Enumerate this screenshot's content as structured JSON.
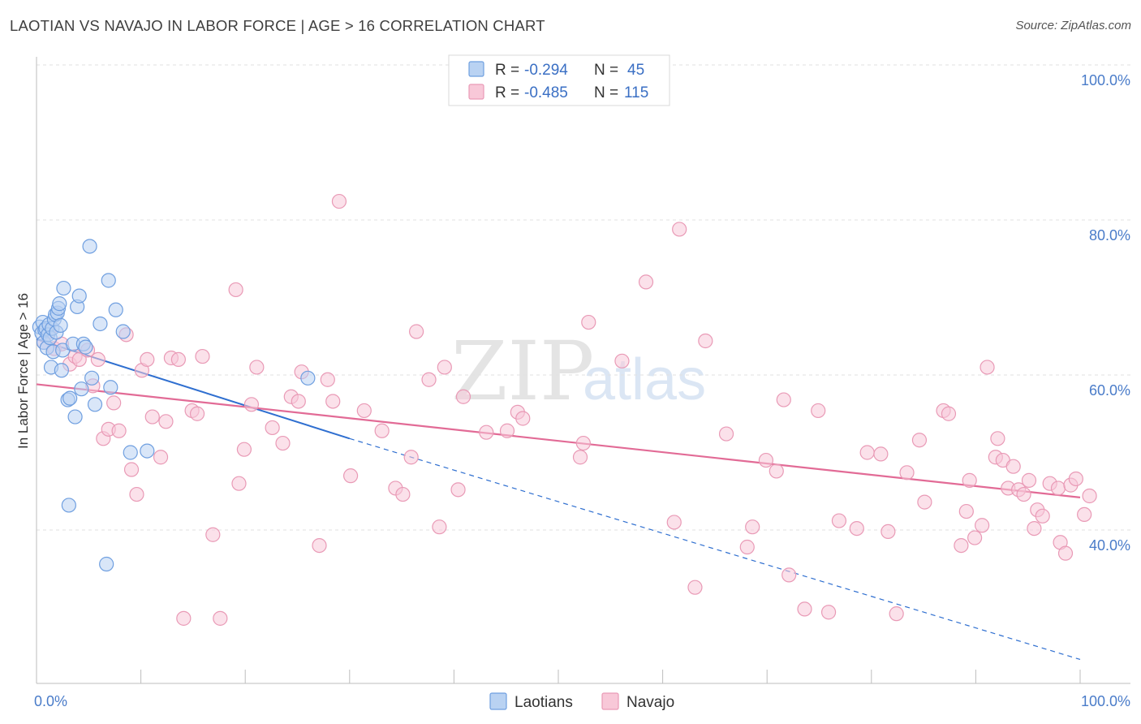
{
  "header": {
    "title": "LAOTIAN VS NAVAJO IN LABOR FORCE | AGE > 16 CORRELATION CHART",
    "source": "Source: ZipAtlas.com"
  },
  "watermark": {
    "zip": "ZIP",
    "atlas": "atlas"
  },
  "colors": {
    "laotian_fill": "#b9d2f2",
    "laotian_stroke": "#6f9fe0",
    "laotian_line": "#2f6fd0",
    "navajo_fill": "#f8c8d8",
    "navajo_stroke": "#e99ab6",
    "navajo_line": "#e26b96",
    "tick_label": "#4a7cc9",
    "grid": "#e2e2e2"
  },
  "legend": {
    "rows": [
      {
        "r_label": "R = ",
        "r_value": "-0.294",
        "n_label": "N = ",
        "n_value": "45"
      },
      {
        "r_label": "R = ",
        "r_value": "-0.485",
        "n_label": "N = ",
        "n_value": "115"
      }
    ]
  },
  "chart_data": {
    "type": "scatter",
    "title": "LAOTIAN VS NAVAJO IN LABOR FORCE | AGE > 16 CORRELATION CHART",
    "xlabel": "",
    "ylabel": "In Labor Force | Age > 16",
    "xlim": [
      0,
      100
    ],
    "ylim": [
      20,
      103
    ],
    "x_tick_labels": [
      "0.0%",
      "100.0%"
    ],
    "y_ticks": [
      40,
      60,
      80,
      100
    ],
    "y_tick_labels": [
      "40.0%",
      "60.0%",
      "80.0%",
      "100.0%"
    ],
    "grid": true,
    "legend_position": "top-center",
    "series": [
      {
        "name": "Laotians",
        "r": -0.294,
        "n": 45,
        "trend": {
          "x0": 0,
          "y0": 64.6,
          "x1": 30,
          "y1": 51.8,
          "dashed_to_x": 100,
          "dashed_to_y": 23.3
        },
        "points": [
          [
            0.3,
            66.2
          ],
          [
            0.5,
            65.4
          ],
          [
            0.6,
            66.8
          ],
          [
            0.7,
            64.2
          ],
          [
            0.8,
            65.8
          ],
          [
            0.9,
            66.0
          ],
          [
            1.0,
            63.5
          ],
          [
            1.1,
            65.2
          ],
          [
            1.2,
            66.5
          ],
          [
            1.3,
            64.8
          ],
          [
            1.4,
            61.0
          ],
          [
            1.5,
            66.0
          ],
          [
            1.6,
            63.0
          ],
          [
            1.7,
            67.2
          ],
          [
            1.8,
            67.8
          ],
          [
            1.9,
            65.5
          ],
          [
            2.0,
            68.0
          ],
          [
            2.1,
            68.6
          ],
          [
            2.2,
            69.2
          ],
          [
            2.3,
            66.4
          ],
          [
            2.4,
            60.6
          ],
          [
            2.5,
            63.2
          ],
          [
            2.6,
            71.2
          ],
          [
            3.0,
            56.8
          ],
          [
            3.2,
            57.0
          ],
          [
            3.5,
            64.0
          ],
          [
            3.7,
            54.6
          ],
          [
            3.9,
            68.8
          ],
          [
            4.1,
            70.2
          ],
          [
            4.3,
            58.2
          ],
          [
            4.5,
            64.0
          ],
          [
            4.7,
            63.6
          ],
          [
            5.1,
            76.6
          ],
          [
            5.3,
            59.6
          ],
          [
            5.6,
            56.2
          ],
          [
            6.1,
            66.6
          ],
          [
            6.9,
            72.2
          ],
          [
            7.1,
            58.4
          ],
          [
            7.6,
            68.4
          ],
          [
            8.3,
            65.6
          ],
          [
            9.0,
            50.0
          ],
          [
            10.6,
            50.2
          ],
          [
            3.1,
            43.2
          ],
          [
            6.7,
            35.6
          ],
          [
            26.0,
            59.6
          ]
        ]
      },
      {
        "name": "Navajo",
        "r": -0.485,
        "n": 115,
        "trend": {
          "x0": 0,
          "y0": 58.8,
          "x1": 100,
          "y1": 44.2
        },
        "points": [
          [
            0.7,
            64.2
          ],
          [
            1.2,
            65.6
          ],
          [
            1.7,
            63.4
          ],
          [
            2.4,
            64.0
          ],
          [
            3.2,
            61.4
          ],
          [
            3.7,
            62.4
          ],
          [
            4.1,
            62.0
          ],
          [
            4.9,
            63.2
          ],
          [
            5.4,
            58.6
          ],
          [
            5.9,
            62.0
          ],
          [
            6.4,
            51.8
          ],
          [
            6.9,
            53.0
          ],
          [
            7.4,
            56.4
          ],
          [
            7.9,
            52.8
          ],
          [
            8.6,
            65.2
          ],
          [
            9.1,
            47.8
          ],
          [
            9.6,
            44.6
          ],
          [
            10.1,
            60.6
          ],
          [
            10.6,
            62.0
          ],
          [
            11.1,
            54.6
          ],
          [
            11.9,
            49.4
          ],
          [
            12.4,
            54.0
          ],
          [
            12.9,
            62.2
          ],
          [
            13.6,
            62.0
          ],
          [
            14.1,
            28.6
          ],
          [
            14.9,
            55.4
          ],
          [
            15.4,
            55.0
          ],
          [
            15.9,
            62.4
          ],
          [
            16.9,
            39.4
          ],
          [
            17.6,
            28.6
          ],
          [
            19.1,
            71.0
          ],
          [
            19.4,
            46.0
          ],
          [
            19.9,
            50.4
          ],
          [
            20.6,
            56.2
          ],
          [
            21.1,
            61.0
          ],
          [
            22.6,
            53.2
          ],
          [
            23.6,
            51.2
          ],
          [
            24.4,
            57.2
          ],
          [
            25.1,
            56.6
          ],
          [
            25.4,
            60.4
          ],
          [
            27.1,
            38.0
          ],
          [
            27.9,
            59.4
          ],
          [
            28.4,
            56.6
          ],
          [
            30.1,
            47.0
          ],
          [
            31.4,
            55.4
          ],
          [
            33.1,
            52.8
          ],
          [
            34.4,
            45.4
          ],
          [
            35.1,
            44.6
          ],
          [
            35.9,
            49.4
          ],
          [
            36.4,
            65.6
          ],
          [
            37.6,
            59.4
          ],
          [
            38.6,
            40.4
          ],
          [
            39.1,
            61.0
          ],
          [
            40.4,
            45.2
          ],
          [
            40.9,
            57.2
          ],
          [
            43.1,
            52.6
          ],
          [
            45.1,
            52.8
          ],
          [
            46.1,
            55.2
          ],
          [
            46.6,
            54.4
          ],
          [
            29.0,
            82.4
          ],
          [
            52.4,
            51.2
          ],
          [
            52.1,
            49.4
          ],
          [
            52.9,
            66.8
          ],
          [
            56.1,
            61.8
          ],
          [
            58.4,
            72.0
          ],
          [
            61.1,
            41.0
          ],
          [
            61.6,
            78.8
          ],
          [
            63.1,
            32.6
          ],
          [
            64.1,
            64.4
          ],
          [
            66.1,
            52.4
          ],
          [
            68.1,
            37.8
          ],
          [
            68.6,
            40.4
          ],
          [
            69.9,
            49.0
          ],
          [
            70.9,
            47.6
          ],
          [
            71.6,
            56.8
          ],
          [
            72.1,
            34.2
          ],
          [
            73.6,
            29.8
          ],
          [
            74.9,
            55.4
          ],
          [
            75.9,
            29.4
          ],
          [
            76.9,
            41.2
          ],
          [
            78.6,
            40.2
          ],
          [
            79.6,
            50.0
          ],
          [
            80.9,
            49.8
          ],
          [
            81.6,
            39.8
          ],
          [
            82.4,
            29.2
          ],
          [
            83.4,
            47.4
          ],
          [
            84.6,
            51.6
          ],
          [
            85.1,
            43.6
          ],
          [
            86.9,
            55.4
          ],
          [
            87.4,
            55.0
          ],
          [
            88.6,
            38.0
          ],
          [
            89.1,
            42.4
          ],
          [
            89.4,
            46.4
          ],
          [
            89.9,
            39.0
          ],
          [
            90.6,
            40.6
          ],
          [
            91.1,
            61.0
          ],
          [
            91.9,
            49.4
          ],
          [
            92.1,
            51.8
          ],
          [
            92.6,
            49.0
          ],
          [
            93.1,
            45.4
          ],
          [
            93.6,
            48.2
          ],
          [
            94.1,
            45.2
          ],
          [
            94.6,
            44.6
          ],
          [
            95.1,
            46.4
          ],
          [
            95.6,
            40.2
          ],
          [
            95.9,
            42.6
          ],
          [
            96.4,
            41.8
          ],
          [
            97.1,
            46.0
          ],
          [
            97.9,
            45.4
          ],
          [
            98.1,
            38.4
          ],
          [
            98.6,
            37.0
          ],
          [
            99.1,
            45.8
          ],
          [
            99.6,
            46.6
          ],
          [
            100.4,
            42.0
          ],
          [
            100.9,
            44.4
          ]
        ]
      }
    ]
  },
  "bottom_legend": {
    "laotians": "Laotians",
    "navajo": "Navajo"
  }
}
